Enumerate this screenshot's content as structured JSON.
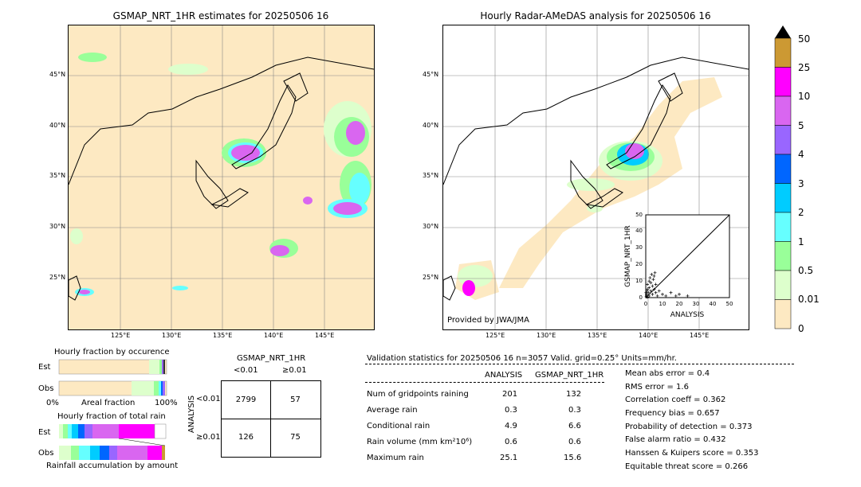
{
  "left_map": {
    "title": "GSMAP_NRT_1HR estimates for 20250506 16"
  },
  "right_map": {
    "title": "Hourly Radar-AMeDAS analysis for 20250506 16",
    "credit": "Provided by JWA/JMA"
  },
  "lat_ticks": [
    "45°N",
    "40°N",
    "35°N",
    "30°N",
    "25°N"
  ],
  "lon_ticks": [
    "125°E",
    "130°E",
    "135°E",
    "140°E",
    "145°E"
  ],
  "colorbar": {
    "labels": [
      "50",
      "25",
      "10",
      "5",
      "4",
      "3",
      "2",
      "1",
      "0.5",
      "0.01",
      "0"
    ],
    "colors": [
      "#cc9933",
      "#ff00ff",
      "#d966f0",
      "#9966ff",
      "#0066ff",
      "#00ccff",
      "#66ffff",
      "#99ff99",
      "#ddffcc",
      "#fde9c2"
    ]
  },
  "scatter": {
    "ylabel": "GSMAP_NRT_1HR",
    "xlabel": "ANALYSIS",
    "ticks": [
      "0",
      "10",
      "20",
      "30",
      "40",
      "50"
    ]
  },
  "chart_data": {
    "type": "scatter",
    "xlabel": "ANALYSIS",
    "ylabel": "GSMAP_NRT_1HR",
    "xlim": [
      0,
      50
    ],
    "ylim": [
      0,
      50
    ],
    "points": [
      [
        0.5,
        2
      ],
      [
        1,
        5
      ],
      [
        1,
        8
      ],
      [
        1.5,
        3
      ],
      [
        2,
        6
      ],
      [
        2,
        10
      ],
      [
        2.5,
        12
      ],
      [
        3,
        4
      ],
      [
        3,
        9
      ],
      [
        3.5,
        14
      ],
      [
        4,
        2
      ],
      [
        4,
        7
      ],
      [
        4.5,
        11
      ],
      [
        5,
        5
      ],
      [
        5,
        13
      ],
      [
        5.5,
        15
      ],
      [
        6,
        3
      ],
      [
        6,
        8
      ],
      [
        7,
        1
      ],
      [
        8,
        4
      ],
      [
        10,
        2
      ],
      [
        12,
        1
      ],
      [
        15,
        3
      ],
      [
        18,
        1
      ],
      [
        20,
        2
      ],
      [
        25,
        1
      ],
      [
        0.3,
        0.5
      ],
      [
        0.5,
        1
      ],
      [
        1,
        0.3
      ],
      [
        2,
        1
      ],
      [
        0.2,
        3
      ],
      [
        0.8,
        4
      ]
    ]
  },
  "occurrence": {
    "title": "Hourly fraction by occurence",
    "row_est": "Est",
    "row_obs": "Obs",
    "axis_left": "0%",
    "axis_mid": "Areal fraction",
    "axis_right": "100%"
  },
  "amount": {
    "title": "Hourly fraction of total rain",
    "row_est": "Est",
    "row_obs": "Obs",
    "footer": "Rainfall accumulation by amount"
  },
  "contingency": {
    "title": "GSMAP_NRT_1HR",
    "col1": "<0.01",
    "col2": "≥0.01",
    "row_axis": "ANALYSIS",
    "row1": "<0.01",
    "row2": "≥0.01",
    "c11": "2799",
    "c12": "57",
    "c21": "126",
    "c22": "75"
  },
  "validation": {
    "header": "Validation statistics for 20250506 16  n=3057 Valid. grid=0.25° Units=mm/hr.",
    "col_analysis": "ANALYSIS",
    "col_gsmap": "GSMAP_NRT_1HR",
    "rows": [
      {
        "label": "Num of gridpoints raining",
        "a": "201",
        "g": "132"
      },
      {
        "label": "Average rain",
        "a": "0.3",
        "g": "0.3"
      },
      {
        "label": "Conditional rain",
        "a": "4.9",
        "g": "6.6"
      },
      {
        "label": "Rain volume (mm km²10⁶)",
        "a": "0.6",
        "g": "0.6"
      },
      {
        "label": "Maximum rain",
        "a": "25.1",
        "g": "15.6"
      }
    ],
    "scores": [
      "Mean abs error =    0.4",
      "RMS error =    1.6",
      "Correlation coeff =  0.362",
      "Frequency bias =  0.657",
      "Probability of detection =  0.373",
      "False alarm ratio =  0.432",
      "Hanssen & Kuipers score =  0.353",
      "Equitable threat score =  0.266"
    ]
  }
}
